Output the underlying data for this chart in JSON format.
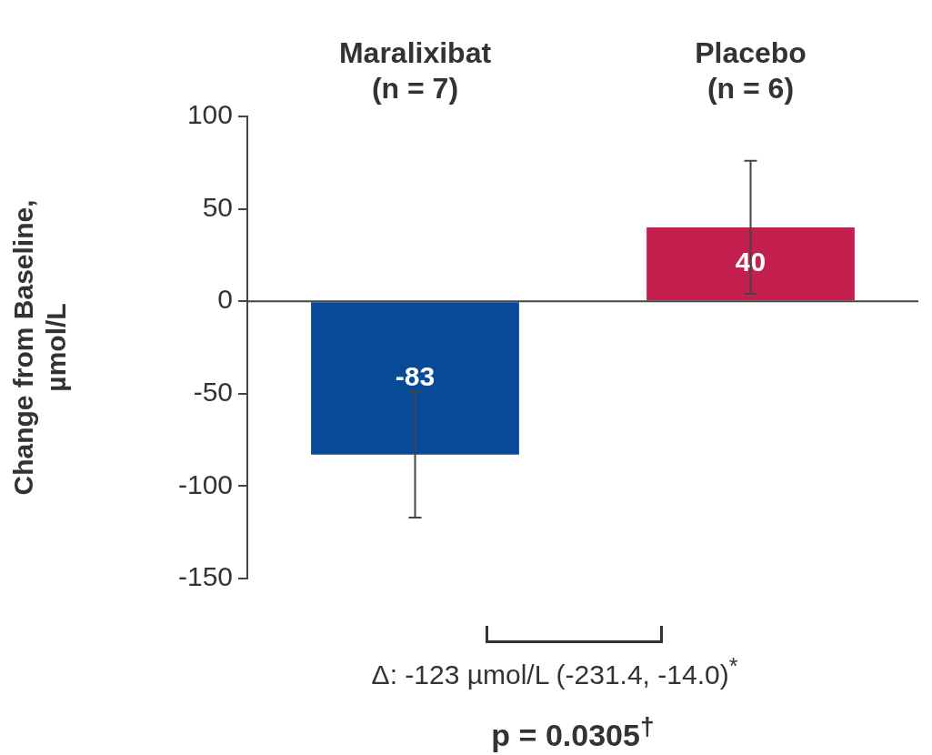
{
  "chart_data": {
    "type": "bar",
    "ylabel": "Change from Baseline,\nµmol/L",
    "categories": [
      "Maralixibat\n(n = 7)",
      "Placebo\n(n = 6)"
    ],
    "values": [
      -83,
      40
    ],
    "colors": [
      "#074a97",
      "#c4204f"
    ],
    "errors": [
      34,
      36
    ],
    "ylim": [
      -150,
      100
    ],
    "yticks": [
      -150,
      -100,
      -50,
      0,
      50,
      100
    ],
    "legend": false,
    "data_labels": true,
    "annotations": [
      "Δ: -123 µmol/L (-231.4, -14.0)$^{*}$",
      "p = 0.0305$^{†}$"
    ]
  }
}
